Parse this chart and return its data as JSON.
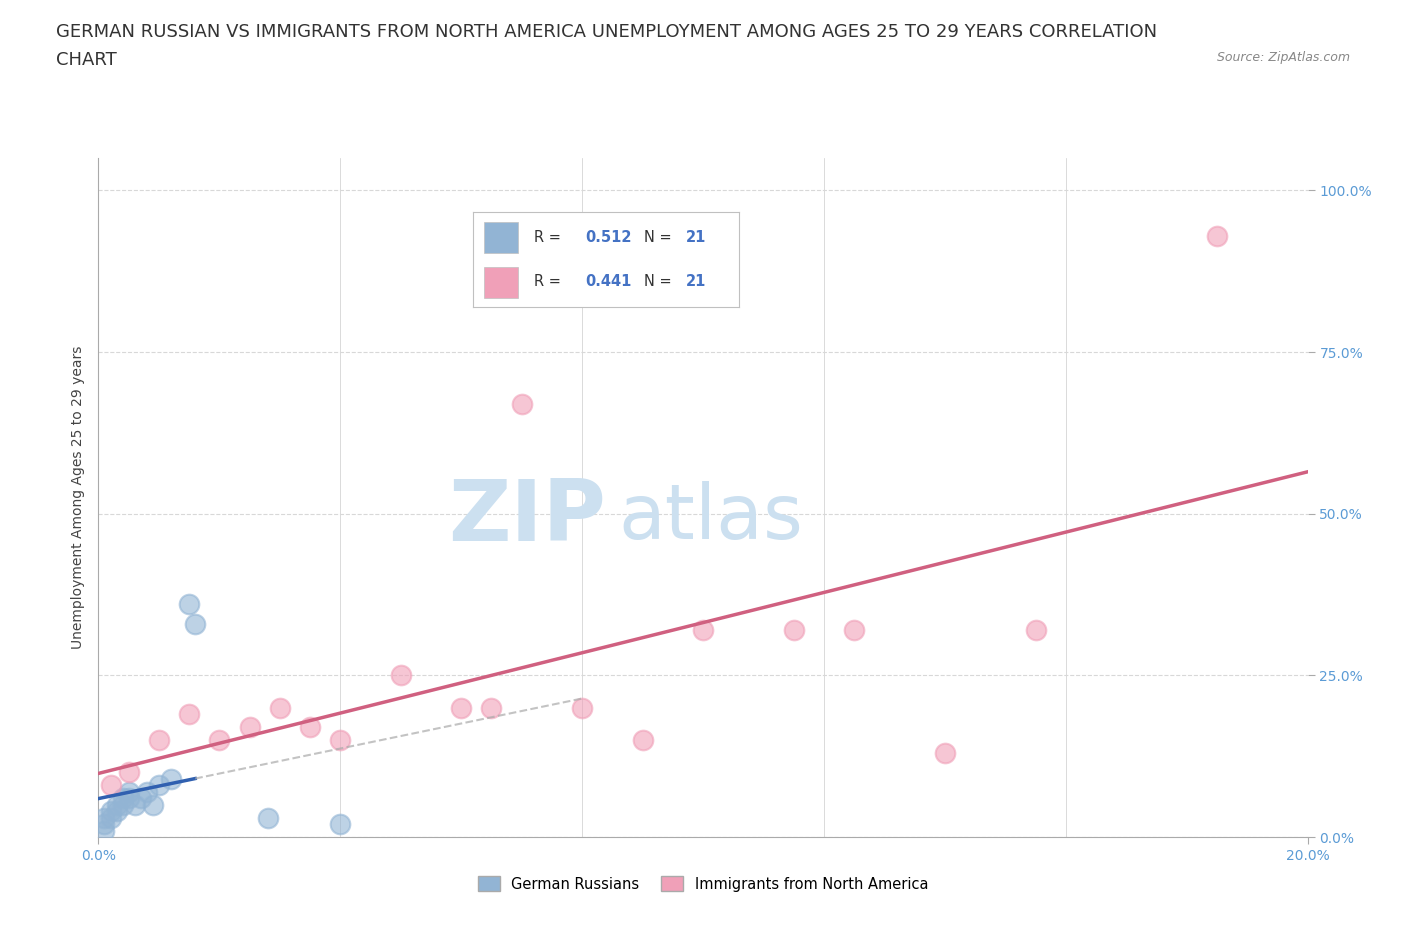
{
  "title_line1": "GERMAN RUSSIAN VS IMMIGRANTS FROM NORTH AMERICA UNEMPLOYMENT AMONG AGES 25 TO 29 YEARS CORRELATION",
  "title_line2": "CHART",
  "source": "Source: ZipAtlas.com",
  "ylabel": "Unemployment Among Ages 25 to 29 years",
  "xlim": [
    0.0,
    0.2
  ],
  "ylim": [
    0.0,
    1.05
  ],
  "yticks": [
    0.0,
    0.25,
    0.5,
    0.75,
    1.0
  ],
  "ytick_labels": [
    "0.0%",
    "25.0%",
    "50.0%",
    "75.0%",
    "100.0%"
  ],
  "xtick_labels": [
    "0.0%",
    "20.0%"
  ],
  "background_color": "#ffffff",
  "blue_color": "#92b4d4",
  "pink_color": "#f0a0b8",
  "blue_line_color": "#3060b0",
  "pink_line_color": "#d06080",
  "legend_label1": "German Russians",
  "legend_label2": "Immigrants from North America",
  "german_russian_x": [
    0.001,
    0.001,
    0.001,
    0.002,
    0.002,
    0.003,
    0.003,
    0.004,
    0.004,
    0.005,
    0.005,
    0.006,
    0.007,
    0.008,
    0.009,
    0.01,
    0.012,
    0.015,
    0.016,
    0.028,
    0.04
  ],
  "german_russian_y": [
    0.01,
    0.02,
    0.03,
    0.03,
    0.04,
    0.04,
    0.05,
    0.05,
    0.06,
    0.06,
    0.07,
    0.05,
    0.06,
    0.07,
    0.05,
    0.08,
    0.09,
    0.36,
    0.33,
    0.03,
    0.02
  ],
  "north_america_x": [
    0.002,
    0.005,
    0.01,
    0.015,
    0.02,
    0.025,
    0.03,
    0.035,
    0.04,
    0.05,
    0.06,
    0.065,
    0.07,
    0.08,
    0.09,
    0.1,
    0.115,
    0.125,
    0.14,
    0.155,
    0.185
  ],
  "north_america_y": [
    0.08,
    0.1,
    0.15,
    0.19,
    0.15,
    0.17,
    0.2,
    0.17,
    0.15,
    0.25,
    0.2,
    0.2,
    0.67,
    0.2,
    0.15,
    0.32,
    0.32,
    0.32,
    0.13,
    0.32,
    0.93
  ],
  "grid_color": "#d8d8d8",
  "title_fontsize": 13,
  "axis_label_fontsize": 10,
  "tick_fontsize": 10,
  "watermark_color": "#cce0f0"
}
